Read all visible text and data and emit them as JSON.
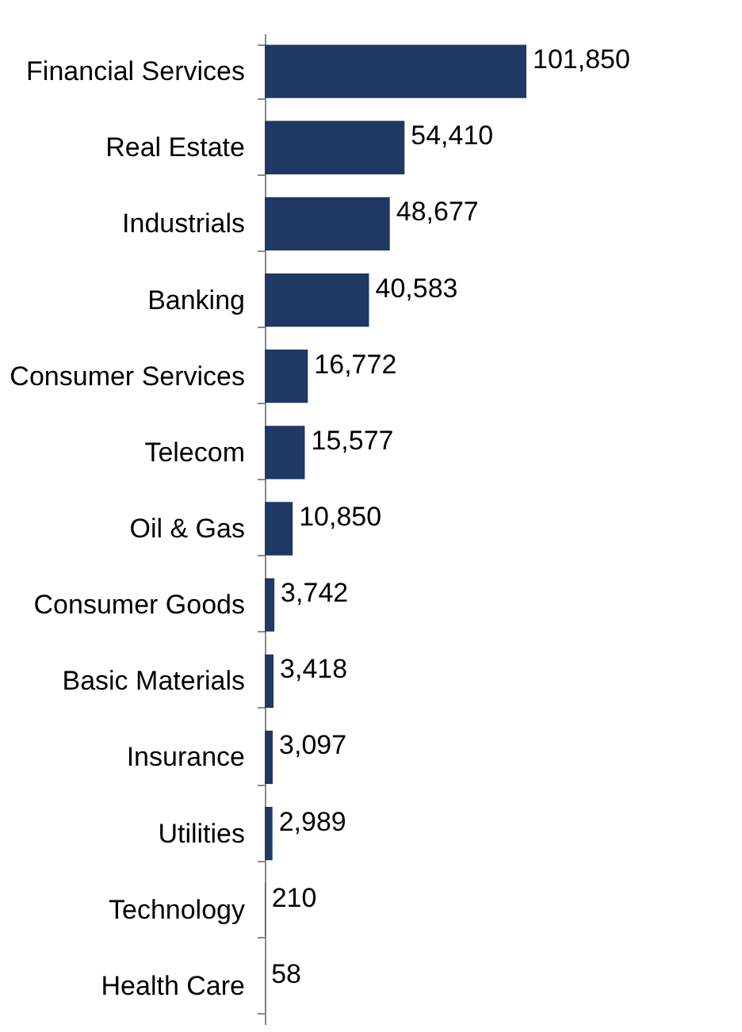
{
  "chart_data": {
    "type": "bar",
    "orientation": "horizontal",
    "value_labels": [
      "101,850",
      "54,410",
      "48,677",
      "40,583",
      "16,772",
      "15,577",
      "10,850",
      "3,742",
      "3,418",
      "3,097",
      "2,989",
      "210",
      "58"
    ],
    "categories": [
      "Financial Services",
      "Real Estate",
      "Industrials",
      "Banking",
      "Consumer Services",
      "Telecom",
      "Oil & Gas",
      "Consumer Goods",
      "Basic Materials",
      "Insurance",
      "Utilities",
      "Technology",
      "Health Care"
    ],
    "values": [
      101850,
      54410,
      48677,
      40583,
      16772,
      15577,
      10850,
      3742,
      3418,
      3097,
      2989,
      210,
      58
    ],
    "color": "#1f3864"
  }
}
